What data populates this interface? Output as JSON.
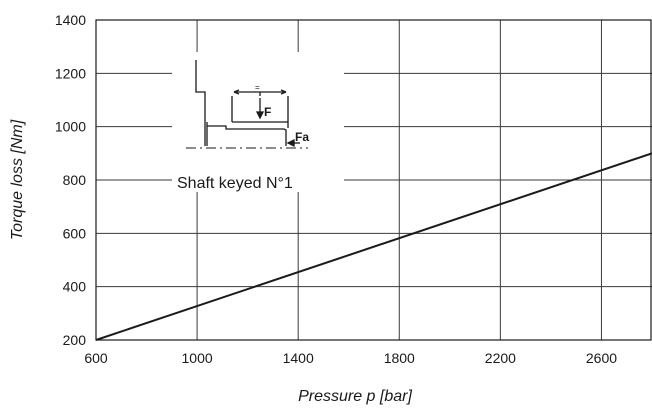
{
  "chart_data": {
    "type": "line",
    "xlabel": "Pressure p [bar]",
    "ylabel": "Torque loss [Nm]",
    "xlim": [
      600,
      2800
    ],
    "ylim": [
      200,
      1400
    ],
    "x_ticks": [
      600,
      1000,
      1400,
      1800,
      2200,
      2600
    ],
    "y_ticks": [
      200,
      400,
      600,
      800,
      1000,
      1200,
      1400
    ],
    "grid": true,
    "series": [
      {
        "x": [
          600,
          2800
        ],
        "y": [
          200,
          900
        ]
      }
    ],
    "colors": {
      "line": "#1a1a1a",
      "grid": "#3a3a3a",
      "axis": "#1a1a1a"
    },
    "inset": {
      "caption": "Shaft keyed N°1",
      "force_label": "F",
      "axial_force_label": "Fa",
      "equal_mark": "="
    }
  }
}
